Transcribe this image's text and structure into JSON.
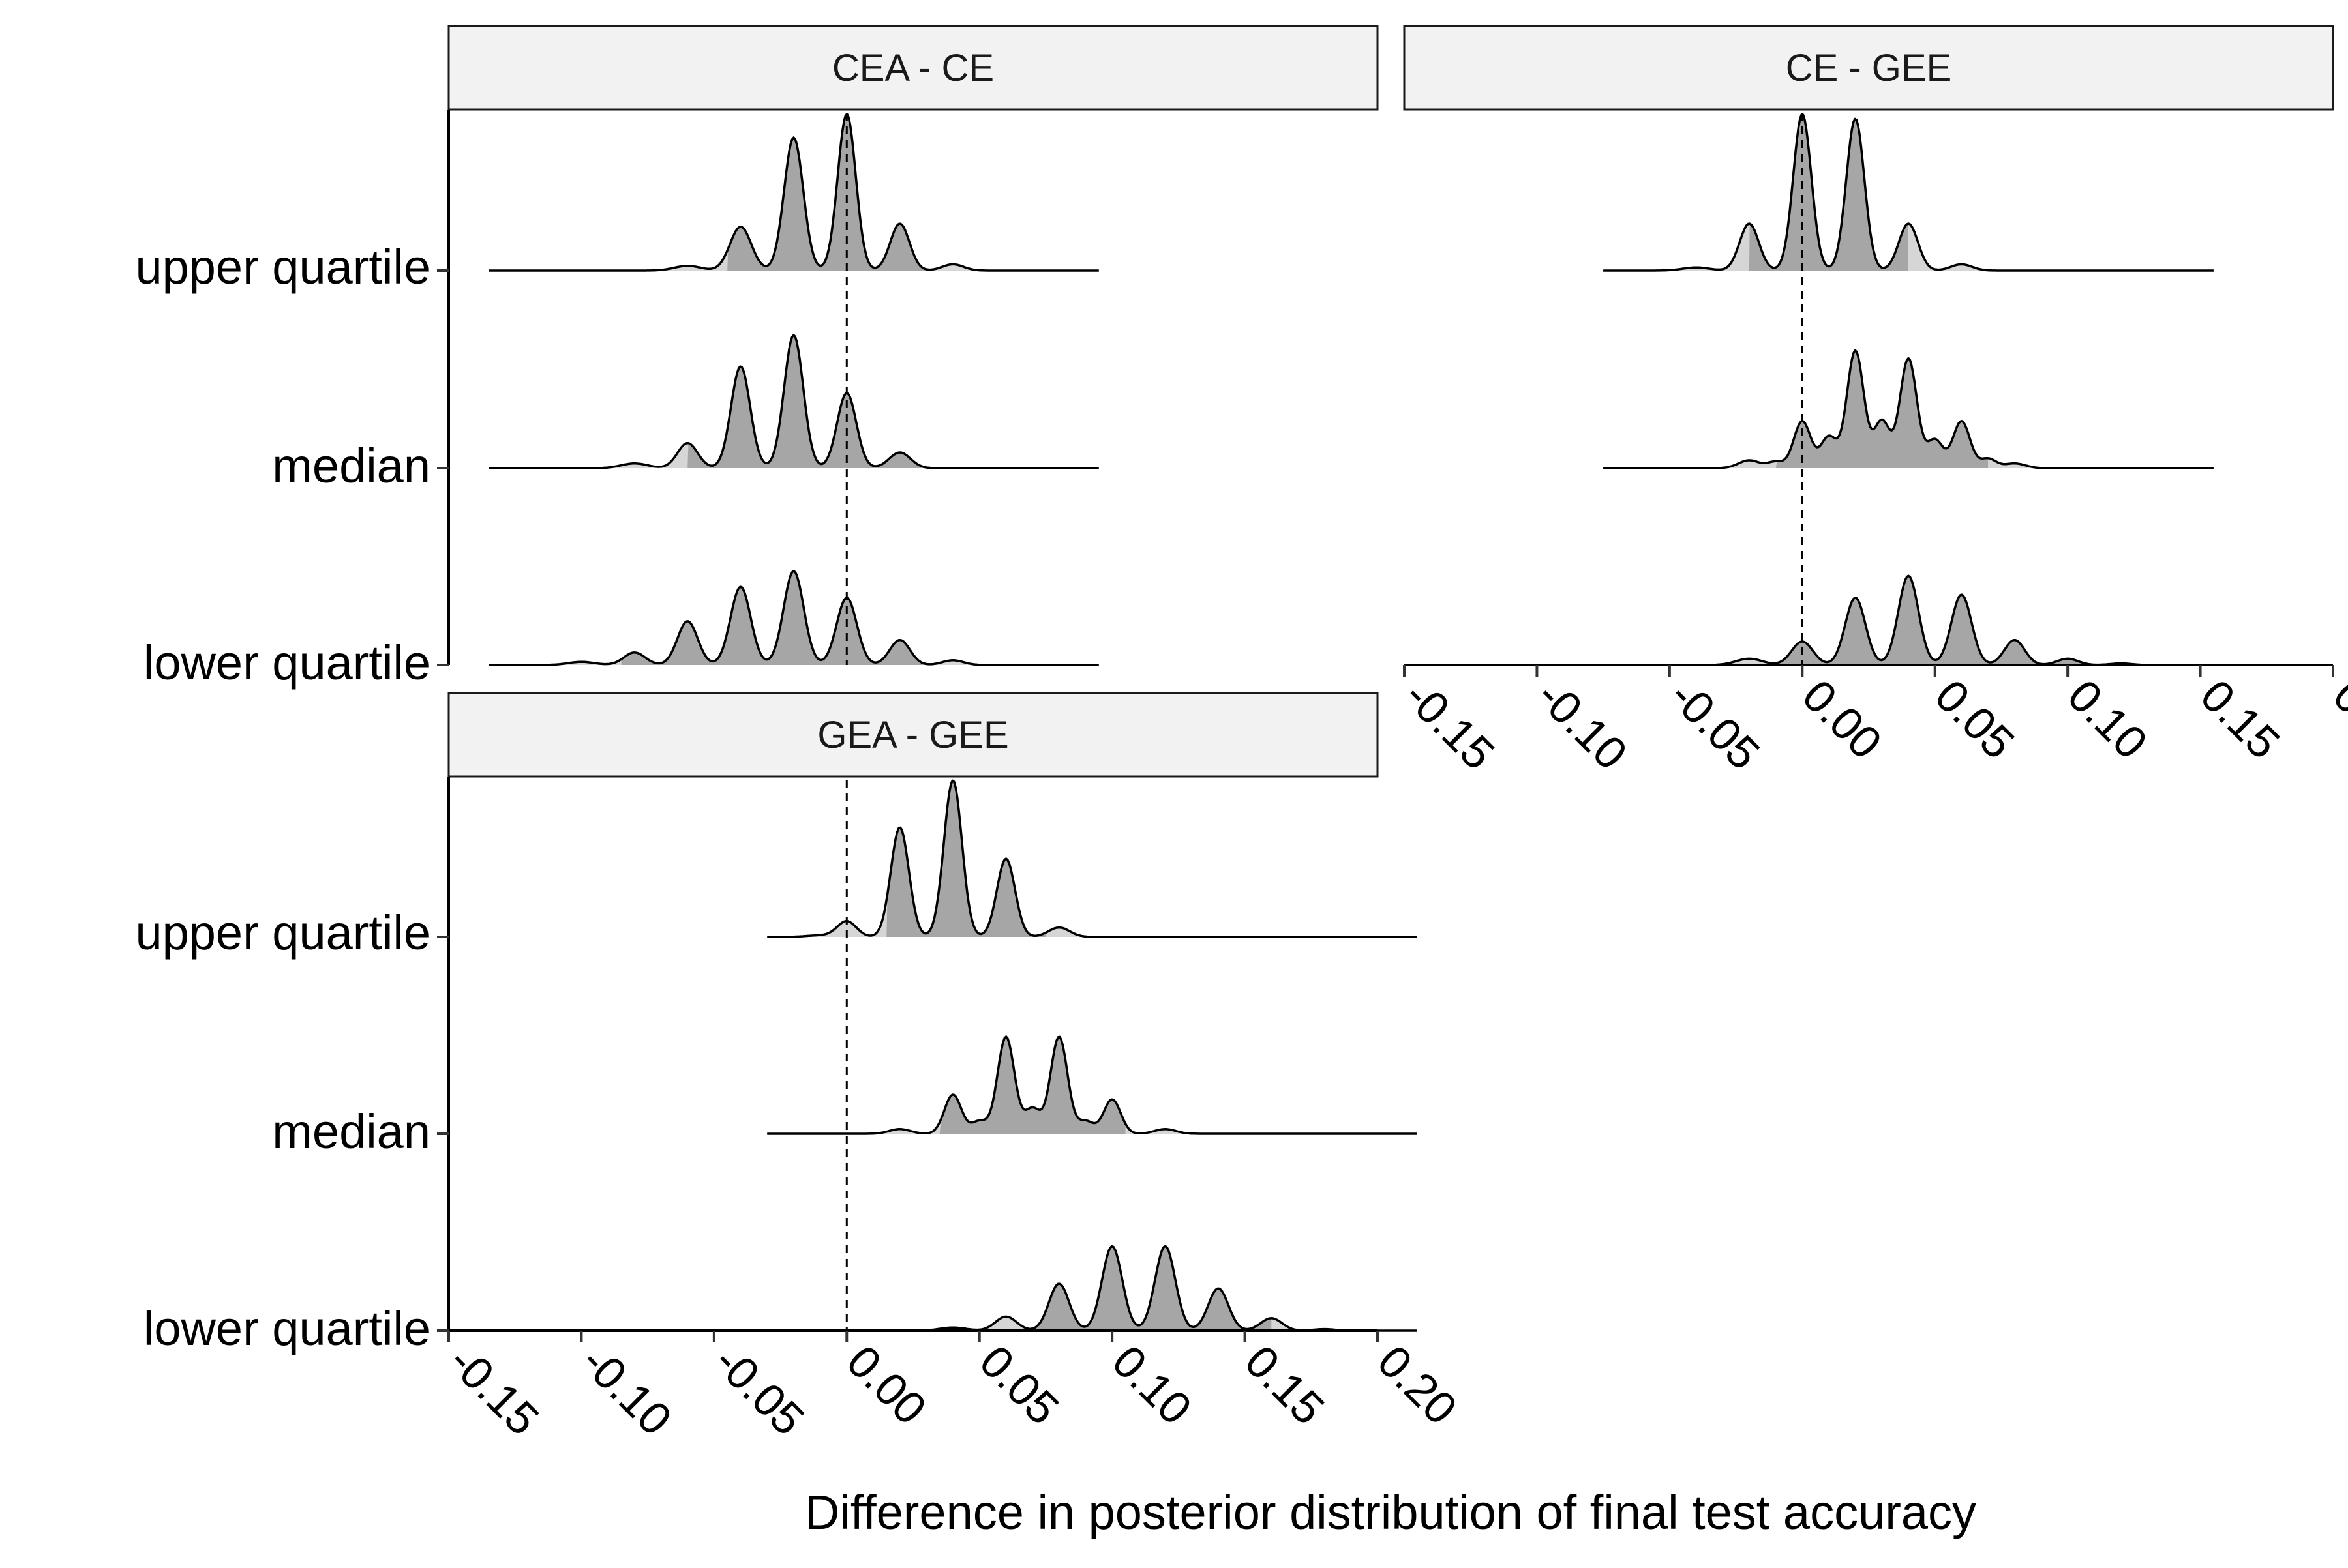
{
  "chart_data": {
    "type": "ridgeline-density",
    "xlabel": "Difference in posterior distribution of final test accuracy",
    "ylabel": "",
    "xlim": [
      -0.15,
      0.2
    ],
    "x_ticks": [
      -0.15,
      -0.1,
      -0.05,
      0.0,
      0.05,
      0.1,
      0.15,
      0.2
    ],
    "x_tick_labels": [
      "-0.15",
      "-0.10",
      "-0.05",
      "0.00",
      "0.05",
      "0.10",
      "0.15",
      "0.20"
    ],
    "reference_line": 0.0,
    "categories": [
      "upper quartile",
      "median",
      "lower quartile"
    ],
    "colors": {
      "fill_dark": "#a6a6a6",
      "fill_light": "#d6d6d6",
      "strip_fill": "#f2f2f2",
      "line": "#000000"
    },
    "panels": [
      {
        "title": "CEA - CE",
        "show_y_labels": true,
        "show_x_axis": false,
        "series": [
          {
            "name": "upper quartile",
            "range": [
              -0.135,
              0.095
            ],
            "interval": [
              -0.045,
              0.03
            ],
            "peaks": [
              [
                -0.06,
                0.03,
                0.005
              ],
              [
                -0.04,
                0.28,
                0.004
              ],
              [
                -0.02,
                0.85,
                0.0036
              ],
              [
                0.0,
                1.0,
                0.0034
              ],
              [
                0.02,
                0.3,
                0.0036
              ],
              [
                0.04,
                0.04,
                0.004
              ]
            ]
          },
          {
            "name": "median",
            "range": [
              -0.135,
              0.095
            ],
            "interval": [
              -0.06,
              0.03
            ],
            "peaks": [
              [
                -0.08,
                0.03,
                0.005
              ],
              [
                -0.06,
                0.16,
                0.0038
              ],
              [
                -0.04,
                0.65,
                0.0036
              ],
              [
                -0.02,
                0.85,
                0.0036
              ],
              [
                0.0,
                0.48,
                0.0036
              ],
              [
                0.02,
                0.1,
                0.004
              ]
            ]
          },
          {
            "name": "lower quartile",
            "range": [
              -0.135,
              0.095
            ],
            "interval": [
              -0.085,
              0.03
            ],
            "peaks": [
              [
                -0.1,
                0.02,
                0.005
              ],
              [
                -0.08,
                0.08,
                0.004
              ],
              [
                -0.06,
                0.28,
                0.0038
              ],
              [
                -0.04,
                0.5,
                0.0038
              ],
              [
                -0.02,
                0.6,
                0.0038
              ],
              [
                0.0,
                0.43,
                0.0038
              ],
              [
                0.02,
                0.16,
                0.0038
              ],
              [
                0.04,
                0.03,
                0.004
              ]
            ]
          }
        ]
      },
      {
        "title": "CE - GEE",
        "show_y_labels": false,
        "show_x_axis": true,
        "series": [
          {
            "name": "upper quartile",
            "range": [
              -0.075,
              0.155
            ],
            "interval": [
              -0.02,
              0.04
            ],
            "peaks": [
              [
                -0.04,
                0.02,
                0.005
              ],
              [
                -0.02,
                0.3,
                0.0036
              ],
              [
                0.0,
                1.0,
                0.0034
              ],
              [
                0.02,
                0.97,
                0.0034
              ],
              [
                0.04,
                0.3,
                0.0036
              ],
              [
                0.06,
                0.04,
                0.004
              ]
            ]
          },
          {
            "name": "median",
            "range": [
              -0.075,
              0.155
            ],
            "interval": [
              -0.01,
              0.07
            ],
            "peaks": [
              [
                -0.02,
                0.05,
                0.004
              ],
              [
                -0.01,
                0.04,
                0.003
              ],
              [
                0.0,
                0.3,
                0.0032
              ],
              [
                0.01,
                0.2,
                0.003
              ],
              [
                0.02,
                0.75,
                0.0032
              ],
              [
                0.03,
                0.3,
                0.003
              ],
              [
                0.04,
                0.7,
                0.0032
              ],
              [
                0.05,
                0.18,
                0.003
              ],
              [
                0.06,
                0.3,
                0.0032
              ],
              [
                0.07,
                0.06,
                0.003
              ],
              [
                0.08,
                0.03,
                0.004
              ]
            ]
          },
          {
            "name": "lower quartile",
            "range": [
              -0.075,
              0.155
            ],
            "interval": [
              -0.01,
              0.115
            ],
            "peaks": [
              [
                -0.02,
                0.04,
                0.005
              ],
              [
                0.0,
                0.15,
                0.004
              ],
              [
                0.02,
                0.43,
                0.0038
              ],
              [
                0.04,
                0.57,
                0.0038
              ],
              [
                0.06,
                0.45,
                0.0038
              ],
              [
                0.08,
                0.16,
                0.0038
              ],
              [
                0.1,
                0.04,
                0.004
              ],
              [
                0.12,
                0.01,
                0.004
              ]
            ]
          }
        ]
      },
      {
        "title": "GEA - GEE",
        "show_y_labels": true,
        "show_x_axis": true,
        "series": [
          {
            "name": "upper quartile",
            "range": [
              -0.03,
              0.215
            ],
            "interval": [
              0.015,
              0.075
            ],
            "peaks": [
              [
                -0.01,
                0.01,
                0.005
              ],
              [
                0.0,
                0.1,
                0.0036
              ],
              [
                0.02,
                0.7,
                0.0034
              ],
              [
                0.04,
                1.0,
                0.0034
              ],
              [
                0.06,
                0.5,
                0.0034
              ],
              [
                0.08,
                0.06,
                0.004
              ]
            ]
          },
          {
            "name": "median",
            "range": [
              -0.03,
              0.215
            ],
            "interval": [
              0.035,
              0.105
            ],
            "peaks": [
              [
                0.02,
                0.03,
                0.004
              ],
              [
                0.04,
                0.25,
                0.0032
              ],
              [
                0.05,
                0.08,
                0.003
              ],
              [
                0.06,
                0.62,
                0.0032
              ],
              [
                0.07,
                0.16,
                0.003
              ],
              [
                0.08,
                0.62,
                0.0032
              ],
              [
                0.09,
                0.08,
                0.003
              ],
              [
                0.1,
                0.22,
                0.0032
              ],
              [
                0.12,
                0.03,
                0.004
              ]
            ]
          },
          {
            "name": "lower quartile",
            "range": [
              -0.03,
              0.215
            ],
            "interval": [
              0.07,
              0.16
            ],
            "peaks": [
              [
                0.04,
                0.02,
                0.005
              ],
              [
                0.06,
                0.09,
                0.004
              ],
              [
                0.08,
                0.3,
                0.0038
              ],
              [
                0.1,
                0.54,
                0.0038
              ],
              [
                0.12,
                0.54,
                0.0038
              ],
              [
                0.14,
                0.27,
                0.0038
              ],
              [
                0.16,
                0.08,
                0.004
              ],
              [
                0.18,
                0.01,
                0.004
              ]
            ]
          }
        ]
      }
    ]
  }
}
